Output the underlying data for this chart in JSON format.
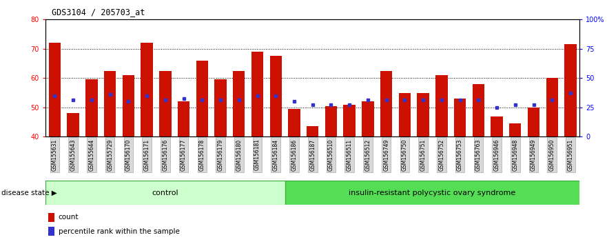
{
  "title": "GDS3104 / 205703_at",
  "samples": [
    "GSM155631",
    "GSM155643",
    "GSM155644",
    "GSM155729",
    "GSM156170",
    "GSM156171",
    "GSM156176",
    "GSM156177",
    "GSM156178",
    "GSM156179",
    "GSM156180",
    "GSM156181",
    "GSM156184",
    "GSM156186",
    "GSM156187",
    "GSM156510",
    "GSM156511",
    "GSM156512",
    "GSM156749",
    "GSM156750",
    "GSM156751",
    "GSM156752",
    "GSM156753",
    "GSM156763",
    "GSM156946",
    "GSM156948",
    "GSM156949",
    "GSM156950",
    "GSM156951"
  ],
  "bar_values": [
    72,
    48,
    59.5,
    62.5,
    61,
    72,
    62.5,
    52,
    66,
    59.5,
    62.5,
    69,
    67.5,
    49.5,
    43.5,
    50.5,
    51,
    52,
    62.5,
    55,
    55,
    61,
    53,
    58,
    47,
    44.5,
    50,
    60,
    71.5
  ],
  "percentile_values": [
    54,
    52.5,
    52.5,
    54.5,
    52,
    54,
    52.5,
    53,
    52.5,
    52.5,
    52.5,
    54,
    54,
    52,
    51,
    51,
    51,
    52.5,
    52.5,
    52.5,
    52.5,
    52.5,
    52.5,
    52.5,
    50,
    51,
    51,
    52.5,
    55
  ],
  "control_count": 13,
  "disease_state_label": "disease state",
  "group1_label": "control",
  "group2_label": "insulin-resistant polycystic ovary syndrome",
  "bar_color": "#cc1100",
  "percentile_color": "#3333cc",
  "control_bg": "#ccffcc",
  "disease_bg": "#55dd55",
  "ylim_left": [
    40,
    80
  ],
  "yticks_left": [
    40,
    50,
    60,
    70,
    80
  ],
  "ylim_right": [
    0,
    100
  ],
  "yticks_right": [
    0,
    25,
    50,
    75,
    100
  ],
  "legend_count": "count",
  "legend_percentile": "percentile rank within the sample",
  "bar_width": 0.65
}
